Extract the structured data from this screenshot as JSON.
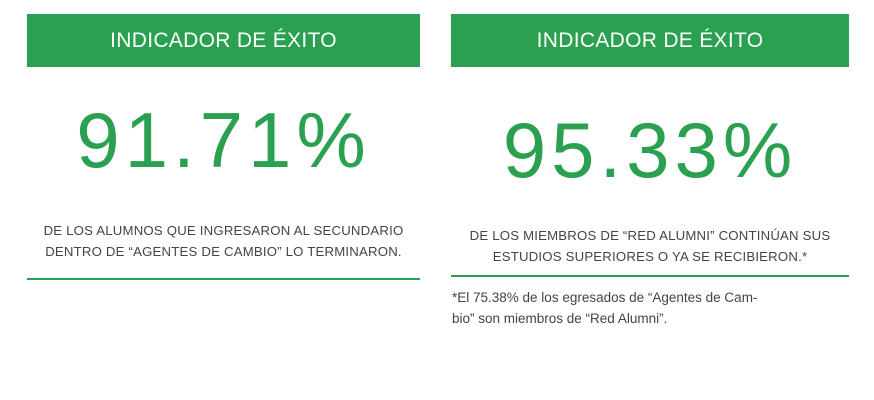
{
  "panels": [
    {
      "header": "INDICADOR DE ÉXITO",
      "value": "91.71%",
      "description_line1": "DE LOS ALUMNOS QUE INGRESARON AL SECUNDARIO",
      "description_line2": "DENTRO DE “AGENTES DE CAMBIO” LO TERMINARON."
    },
    {
      "header": "INDICADOR DE ÉXITO",
      "value": "95.33%",
      "description_line1": "DE LOS MIEMBROS DE “RED ALUMNI” CONTINÚAN SUS",
      "description_line2": "ESTUDIOS SUPERIORES O YA SE RECIBIERON.*",
      "footnote_line1": "*El 75.38% de los egresados de “Agentes de Cam-",
      "footnote_line2": "bio” son miembros de “Red Alumni”."
    }
  ],
  "colors": {
    "accent": "#2aa050",
    "text": "#444444",
    "background": "#ffffff"
  }
}
